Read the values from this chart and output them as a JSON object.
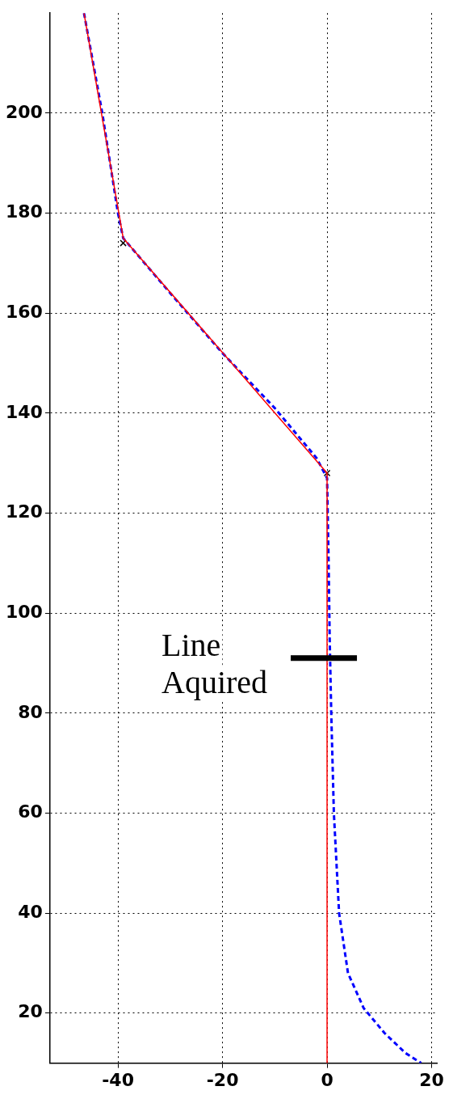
{
  "chart_data": {
    "type": "line",
    "xlim": [
      -53,
      21
    ],
    "ylim": [
      10,
      220
    ],
    "xticks": [
      -40,
      -20,
      0,
      20
    ],
    "yticks": [
      20,
      40,
      60,
      80,
      100,
      120,
      140,
      160,
      180,
      200
    ],
    "grid": true,
    "legend": false,
    "series": [
      {
        "color": "#ff0000",
        "line_style": "solid",
        "marker": "none",
        "x": [
          -46.5,
          -39,
          0,
          0
        ],
        "values": [
          220,
          175,
          128,
          10
        ]
      },
      {
        "color": "#0000ff",
        "line_style": "dashed",
        "marker": "none",
        "x": [
          -46.5,
          -43,
          -40,
          -39,
          -30,
          -20,
          -10,
          -2,
          0,
          0.3,
          0.5,
          0.8,
          1.3,
          2.3,
          4,
          7,
          11,
          15,
          18
        ],
        "values": [
          220,
          200,
          180,
          175,
          164,
          152,
          141,
          131,
          127,
          110,
          95,
          80,
          60,
          40,
          28,
          21,
          16,
          12,
          10
        ]
      },
      {
        "type": "scatter",
        "color": "#000000",
        "marker": "cross",
        "x": [
          -39,
          0
        ],
        "values": [
          174,
          128
        ]
      }
    ],
    "annotations": [
      {
        "text": "Line\nAquired",
        "x": 0,
        "y": 91
      }
    ]
  }
}
